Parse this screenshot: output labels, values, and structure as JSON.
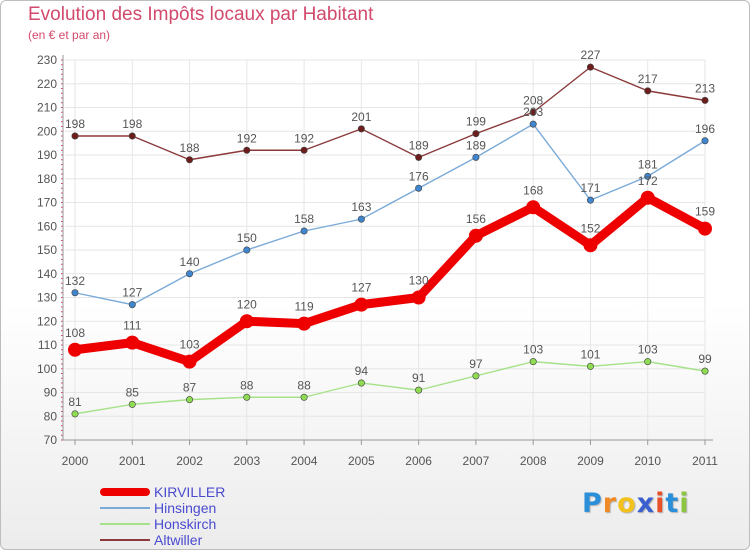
{
  "header": {
    "title": "Evolution des Impôts locaux par Habitant",
    "subtitle": "(en € et par an)"
  },
  "logo": {
    "text": "Proxiti",
    "letters": [
      "P",
      "r",
      "o",
      "x",
      "i",
      "t",
      "i"
    ],
    "colors": [
      "#2a8fd8",
      "#f08a24",
      "#f3c11b",
      "#3a5fcf",
      "#e8512a",
      "#2a8fd8",
      "#8cc63f"
    ]
  },
  "colors": {
    "title": "#d24a6b",
    "axis": "#555555",
    "grid": "#e6e6e6",
    "legend_text": "#4a4ad0"
  },
  "chart_data": {
    "type": "line",
    "title": "Evolution des Impôts locaux par Habitant",
    "subtitle": "(en € et par an)",
    "xlabel": "",
    "ylabel": "",
    "ylim": [
      70,
      230
    ],
    "ytick_step": 10,
    "x": [
      "2000",
      "2001",
      "2002",
      "2003",
      "2004",
      "2005",
      "2006",
      "2007",
      "2008",
      "2009",
      "2010",
      "2011"
    ],
    "yticks": [
      "70",
      "80",
      "90",
      "100",
      "110",
      "120",
      "130",
      "140",
      "150",
      "160",
      "170",
      "180",
      "190",
      "200",
      "210",
      "220",
      "230"
    ],
    "legend_position": "bottom-left",
    "series": [
      {
        "name": "KIRVILLER",
        "color": "#ee0000",
        "marker_color": "#ee0000",
        "emphasis": true,
        "values": [
          108,
          111,
          103,
          120,
          119,
          127,
          130,
          156,
          168,
          152,
          172,
          159
        ]
      },
      {
        "name": "Hinsingen",
        "color": "#7aaad8",
        "marker_color": "#3f86cf",
        "emphasis": false,
        "values": [
          132,
          127,
          140,
          150,
          158,
          163,
          176,
          189,
          203,
          171,
          181,
          196
        ]
      },
      {
        "name": "Honskirch",
        "color": "#a6e28a",
        "marker_color": "#8fdc52",
        "emphasis": false,
        "values": [
          81,
          85,
          87,
          88,
          88,
          94,
          91,
          97,
          103,
          101,
          103,
          99
        ]
      },
      {
        "name": "Altwiller",
        "color": "#8a3a3a",
        "marker_color": "#6e1d1d",
        "emphasis": false,
        "values": [
          198,
          198,
          188,
          192,
          192,
          201,
          189,
          199,
          208,
          227,
          217,
          213
        ]
      }
    ]
  }
}
